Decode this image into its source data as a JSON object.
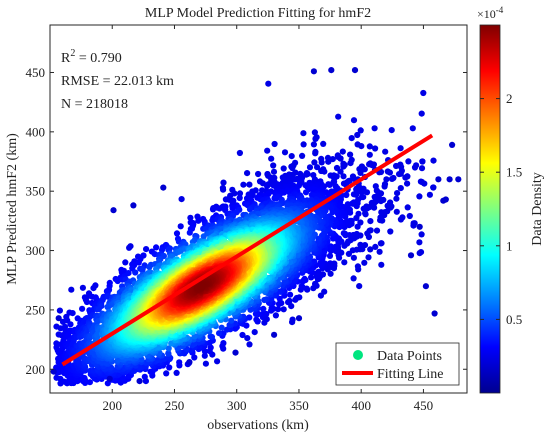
{
  "chart_data": {
    "type": "scatter",
    "title": "MLP Model Prediction Fitting for hmF2",
    "xlabel": "observations (km)",
    "ylabel": "MLP Predicted hmF2 (km)",
    "xlim": [
      150,
      485
    ],
    "ylim": [
      180,
      490
    ],
    "x_ticks": [
      200,
      250,
      300,
      350,
      400,
      450
    ],
    "y_ticks": [
      200,
      250,
      300,
      350,
      400,
      450
    ],
    "stats": {
      "r2_prefix": "R",
      "r2_exp": "2",
      "r2_value": " = 0.790",
      "rmse": "RMSE = 22.013 km",
      "n": "N = 218018"
    },
    "fit_line": {
      "name": "Fitting Line",
      "color": "#ff0000",
      "x": [
        160,
        457
      ],
      "y": [
        204,
        397
      ]
    },
    "points_series": {
      "name": "Data Points",
      "legend_color": "#00e57f",
      "point_count": 218018,
      "center": [
        272,
        270
      ],
      "along_axis_sd_km": 72,
      "cross_axis_sd_km": 18
    },
    "outlier_points": {
      "x": [
        153,
        157,
        198,
        201,
        217,
        222,
        241,
        262,
        299,
        330,
        350,
        362,
        376,
        395,
        440,
        447,
        452,
        459,
        462,
        466,
        468,
        471,
        473,
        478
      ],
      "y": [
        198,
        243,
        192,
        334,
        338,
        190,
        353,
        206,
        214,
        229,
        243,
        451,
        452,
        452,
        296,
        320,
        270,
        247,
        360,
        342,
        343,
        360,
        389,
        360
      ]
    },
    "colorbar": {
      "label": "Data Density",
      "multiplier": "×10",
      "multiplier_exp": "-4",
      "range": [
        0,
        0.00025
      ],
      "ticks": [
        "0.5",
        "1",
        "1.5",
        "2"
      ],
      "tick_values": [
        5e-05,
        0.0001,
        0.00015,
        0.0002
      ],
      "colormap": "jet"
    },
    "legend_position": "bottom-right",
    "grid": false
  }
}
